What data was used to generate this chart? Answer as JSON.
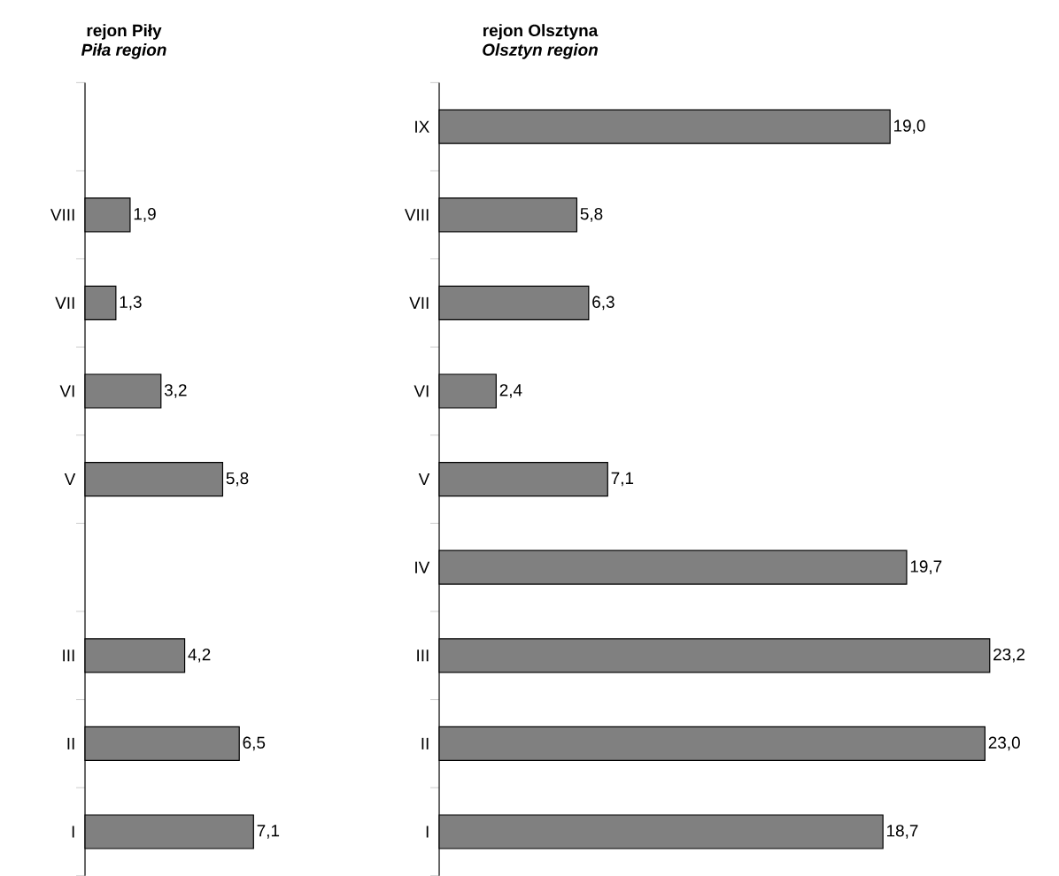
{
  "chart_data": [
    {
      "type": "bar",
      "orientation": "horizontal",
      "title": "rejon Piły",
      "subtitle": "Piła region",
      "color": "#808080",
      "categories": [
        null,
        "VIII",
        "VII",
        "VI",
        "V",
        null,
        "III",
        "II",
        "I"
      ],
      "values": [
        null,
        1.9,
        1.3,
        3.2,
        5.8,
        null,
        4.2,
        6.5,
        7.1
      ],
      "value_labels": [
        null,
        "1,9",
        "1,3",
        "3,2",
        "5,8",
        null,
        "4,2",
        "6,5",
        "7,1"
      ]
    },
    {
      "type": "bar",
      "orientation": "horizontal",
      "title": "rejon Olsztyna",
      "subtitle": "Olsztyn region",
      "color": "#808080",
      "categories": [
        "IX",
        "VIII",
        "VII",
        "VI",
        "V",
        "IV",
        "III",
        "II",
        "I"
      ],
      "values": [
        19.0,
        5.8,
        6.3,
        2.4,
        7.1,
        19.7,
        23.2,
        23.0,
        18.7
      ],
      "value_labels": [
        "19,0",
        "5,8",
        "6,3",
        "2,4",
        "7,1",
        "19,7",
        "23,2",
        "23,0",
        "18,7"
      ]
    }
  ]
}
